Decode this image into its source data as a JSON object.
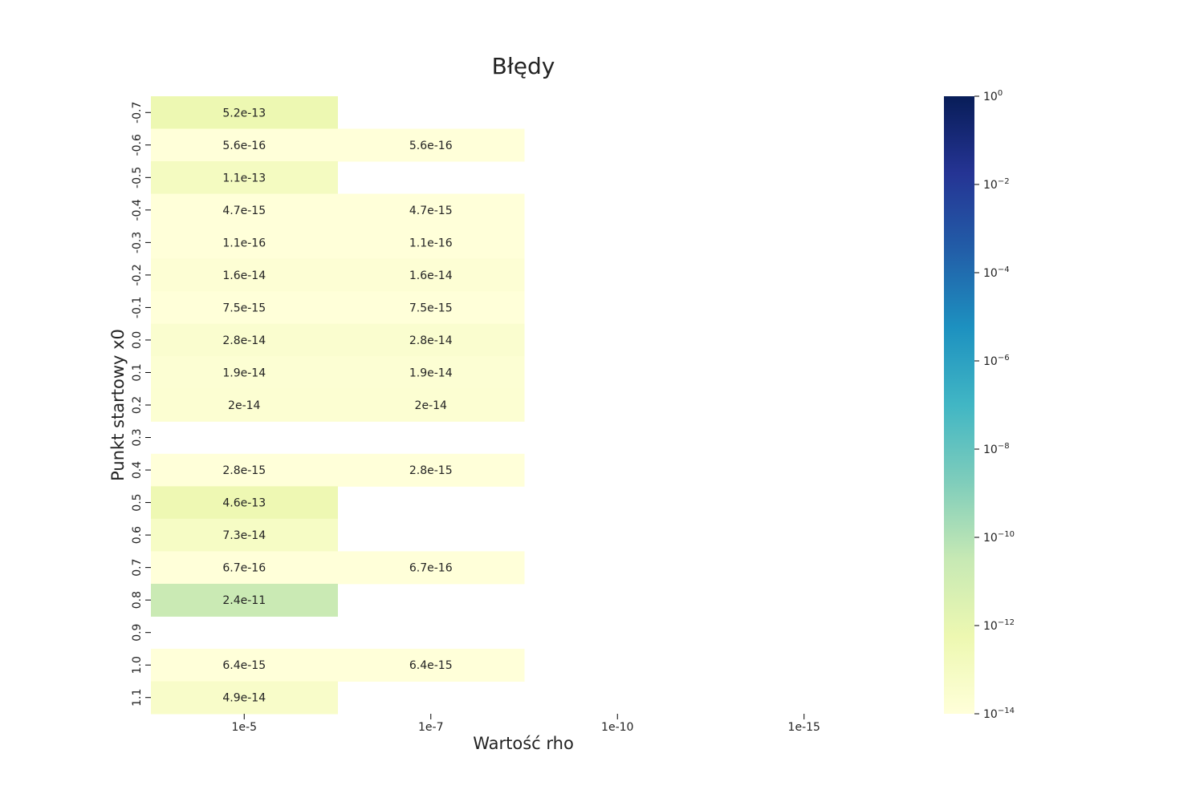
{
  "chart_data": {
    "type": "heatmap",
    "title": "Błędy",
    "xlabel": "Wartość rho",
    "ylabel": "Punkt startowy x0",
    "x_categories": [
      "1e-5",
      "1e-7",
      "1e-10",
      "1e-15"
    ],
    "y_categories": [
      "-0.7",
      "-0.6",
      "-0.5",
      "-0.4",
      "-0.3",
      "-0.2",
      "-0.1",
      "0.0",
      "0.1",
      "0.2",
      "0.3",
      "0.4",
      "0.5",
      "0.6",
      "0.7",
      "0.8",
      "0.9",
      "1.0",
      "1.1"
    ],
    "values": [
      [
        5.2e-13,
        null,
        null,
        null
      ],
      [
        5.6e-16,
        5.6e-16,
        null,
        null
      ],
      [
        1.1e-13,
        null,
        null,
        null
      ],
      [
        4.7e-15,
        4.7e-15,
        null,
        null
      ],
      [
        1.1e-16,
        1.1e-16,
        null,
        null
      ],
      [
        1.6e-14,
        1.6e-14,
        null,
        null
      ],
      [
        7.5e-15,
        7.5e-15,
        null,
        null
      ],
      [
        2.8e-14,
        2.8e-14,
        null,
        null
      ],
      [
        1.9e-14,
        1.9e-14,
        null,
        null
      ],
      [
        2e-14,
        2e-14,
        null,
        null
      ],
      [
        null,
        null,
        null,
        null
      ],
      [
        2.8e-15,
        2.8e-15,
        null,
        null
      ],
      [
        4.6e-13,
        null,
        null,
        null
      ],
      [
        7.3e-14,
        null,
        null,
        null
      ],
      [
        6.7e-16,
        6.7e-16,
        null,
        null
      ],
      [
        2.4e-11,
        null,
        null,
        null
      ],
      [
        null,
        null,
        null,
        null
      ],
      [
        6.4e-15,
        6.4e-15,
        null,
        null
      ],
      [
        4.9e-14,
        null,
        null,
        null
      ]
    ],
    "annotations": [
      [
        "5.2e-13",
        "",
        "",
        ""
      ],
      [
        "5.6e-16",
        "5.6e-16",
        "",
        ""
      ],
      [
        "1.1e-13",
        "",
        "",
        ""
      ],
      [
        "4.7e-15",
        "4.7e-15",
        "",
        ""
      ],
      [
        "1.1e-16",
        "1.1e-16",
        "",
        ""
      ],
      [
        "1.6e-14",
        "1.6e-14",
        "",
        ""
      ],
      [
        "7.5e-15",
        "7.5e-15",
        "",
        ""
      ],
      [
        "2.8e-14",
        "2.8e-14",
        "",
        ""
      ],
      [
        "1.9e-14",
        "1.9e-14",
        "",
        ""
      ],
      [
        "2e-14",
        "2e-14",
        "",
        ""
      ],
      [
        "",
        "",
        "",
        ""
      ],
      [
        "2.8e-15",
        "2.8e-15",
        "",
        ""
      ],
      [
        "4.6e-13",
        "",
        "",
        ""
      ],
      [
        "7.3e-14",
        "",
        "",
        ""
      ],
      [
        "6.7e-16",
        "6.7e-16",
        "",
        ""
      ],
      [
        "2.4e-11",
        "",
        "",
        ""
      ],
      [
        "",
        "",
        "",
        ""
      ],
      [
        "6.4e-15",
        "6.4e-15",
        "",
        ""
      ],
      [
        "4.9e-14",
        "",
        "",
        ""
      ]
    ],
    "colorbar": {
      "scale": "log",
      "colormap": "YlGnBu",
      "range": [
        1e-14,
        1
      ],
      "tick_values": [
        1,
        0.01,
        0.0001,
        1e-06,
        1e-08,
        1e-10,
        1e-12,
        1e-14
      ],
      "tick_labels": [
        {
          "base": "10",
          "exp": "0"
        },
        {
          "base": "10",
          "exp": "−2"
        },
        {
          "base": "10",
          "exp": "−4"
        },
        {
          "base": "10",
          "exp": "−6"
        },
        {
          "base": "10",
          "exp": "−8"
        },
        {
          "base": "10",
          "exp": "−10"
        },
        {
          "base": "10",
          "exp": "−12"
        },
        {
          "base": "10",
          "exp": "−14"
        }
      ],
      "colormap_stops": [
        "#ffffd9",
        "#edf8b1",
        "#c7e9b4",
        "#7fcdbb",
        "#41b6c4",
        "#1d91c0",
        "#225ea8",
        "#253494",
        "#081d58"
      ]
    },
    "grid": false,
    "legend": "colorbar-right"
  }
}
